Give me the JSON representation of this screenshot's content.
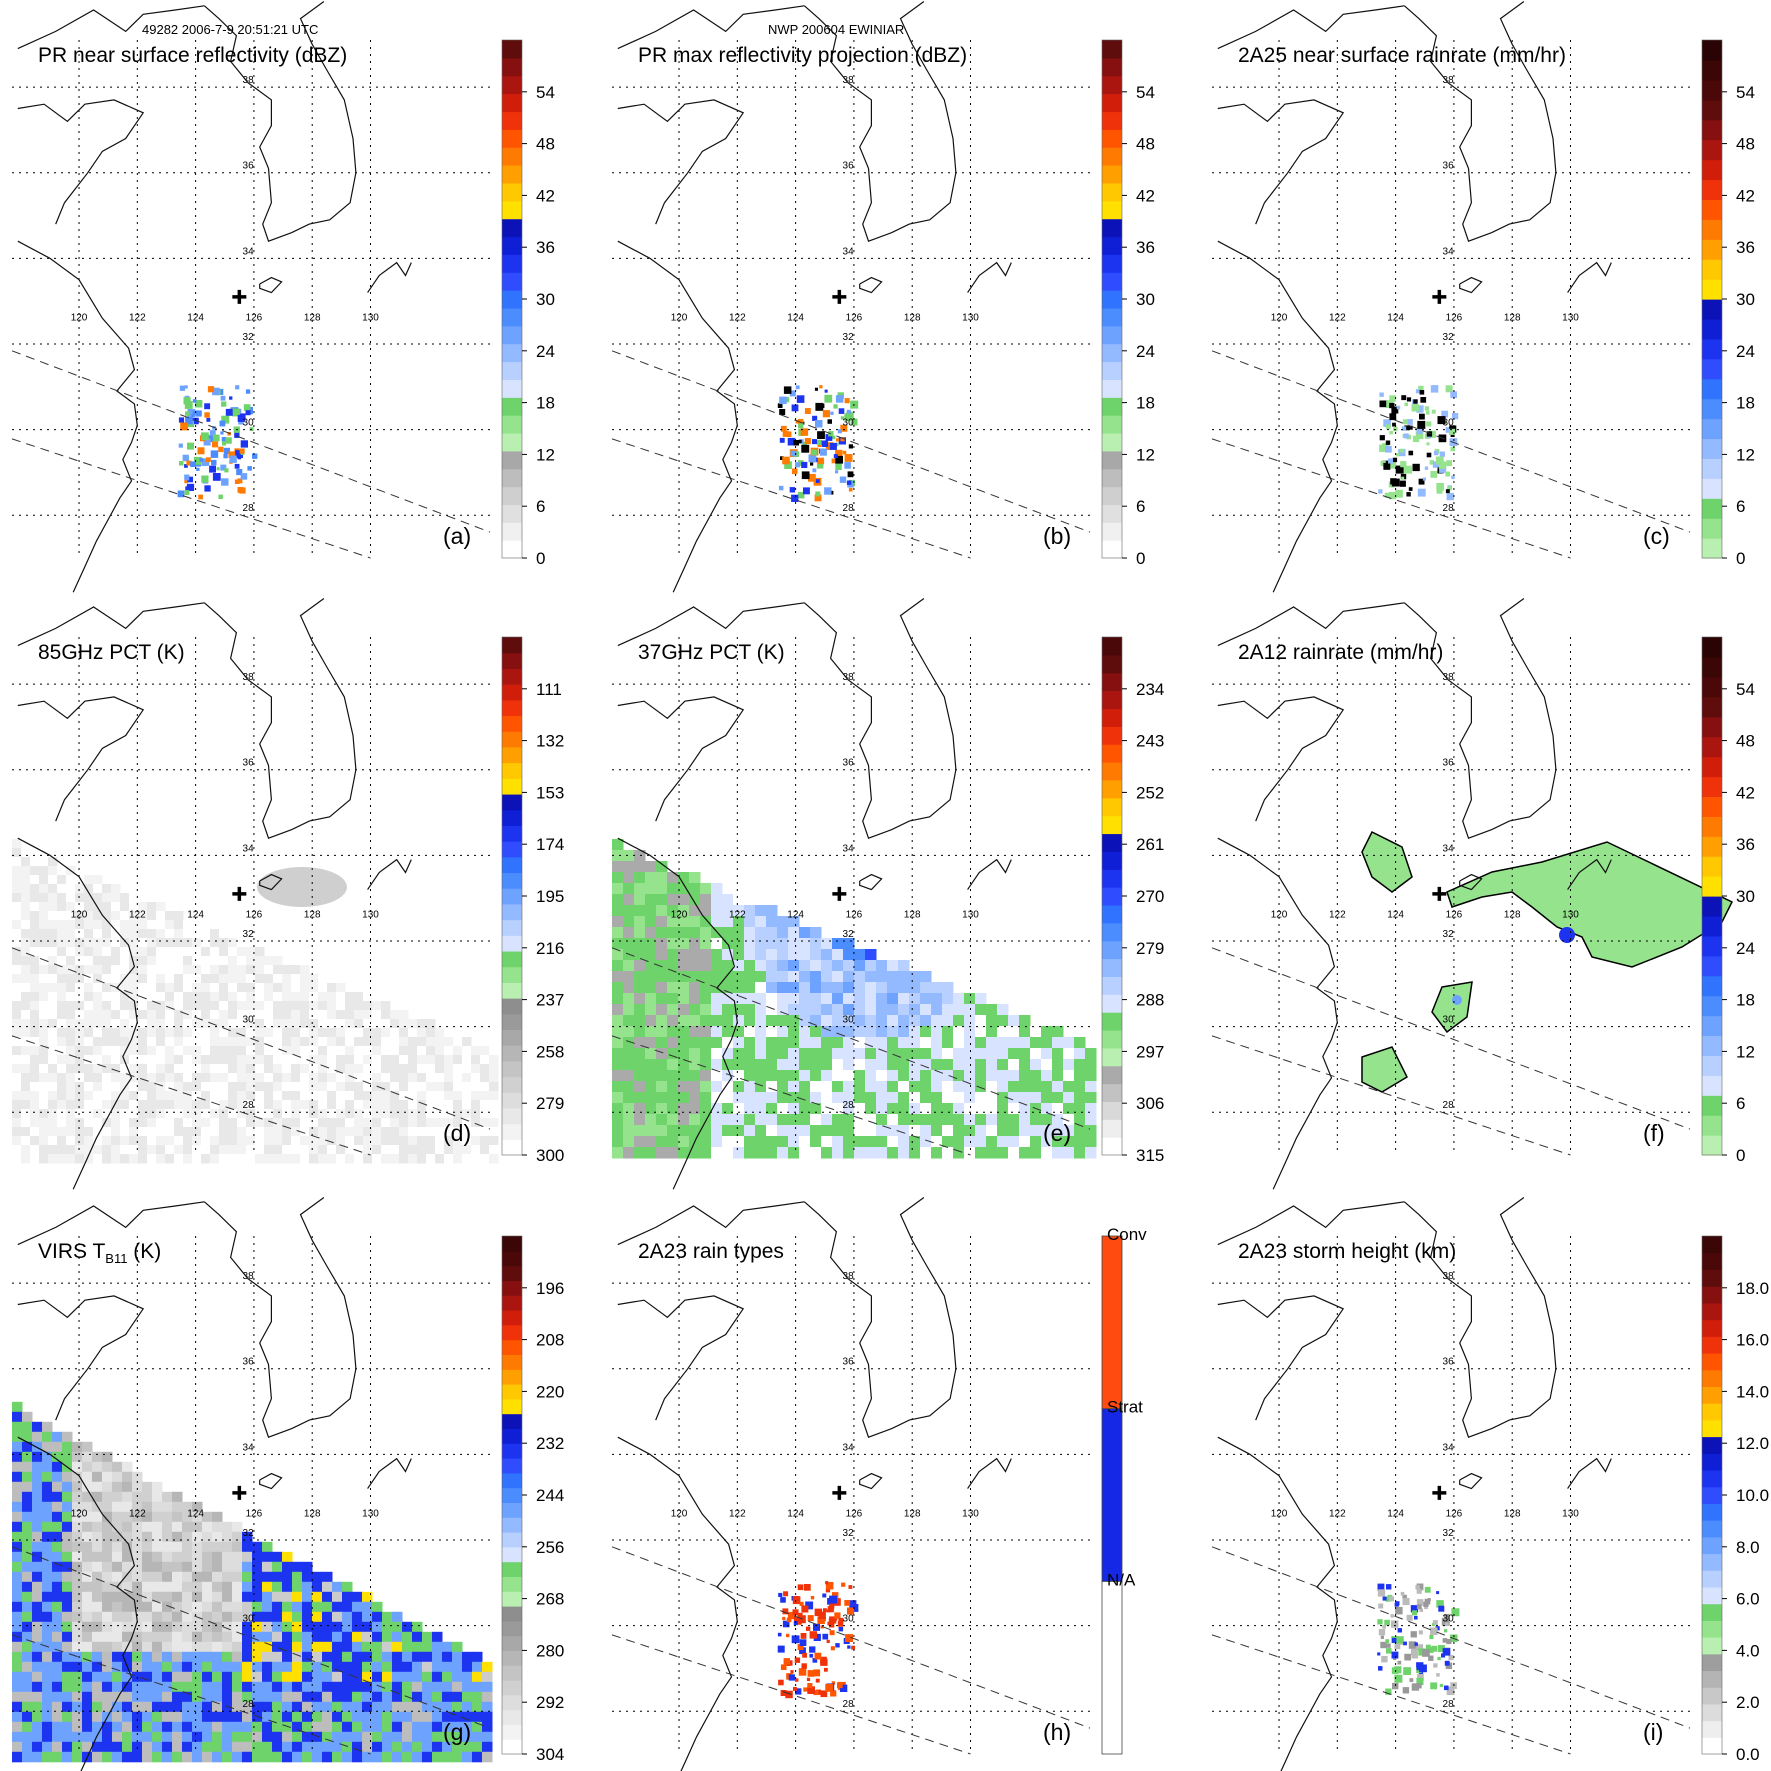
{
  "header": {
    "left": "49282 2006-7-9 20:51:21 UTC",
    "center": "NWP 200604 EWINIAR"
  },
  "map": {
    "lon_labels": [
      "120",
      "122",
      "124",
      "126",
      "128",
      "130"
    ],
    "lat_labels": [
      "38",
      "36",
      "34",
      "32",
      "30",
      "28"
    ]
  },
  "colors": {
    "gray": "#a8a8a8",
    "green": "#7dd87d",
    "light_blue": "#9ec8ff",
    "blue": "#1428e6",
    "yellow": "#ffe400",
    "orange": "#ff8c00",
    "red": "#e61e0a",
    "dark_red": "#8b1a10"
  },
  "chart_data": [
    {
      "id": "a",
      "type": "heatmap",
      "title": "PR near surface reflectivity (dBZ)",
      "panel_label": "(a)",
      "colorbar": {
        "ticks": [
          "0",
          "6",
          "12",
          "18",
          "24",
          "30",
          "36",
          "42",
          "48",
          "54"
        ]
      }
    },
    {
      "id": "b",
      "type": "heatmap",
      "title": "PR max reflectivity projection (dBZ)",
      "panel_label": "(b)",
      "colorbar": {
        "ticks": [
          "0",
          "6",
          "12",
          "18",
          "24",
          "30",
          "36",
          "42",
          "48",
          "54"
        ]
      }
    },
    {
      "id": "c",
      "type": "heatmap",
      "title": "2A25 near surface rainrate (mm/hr)",
      "panel_label": "(c)",
      "colorbar": {
        "ticks": [
          "0",
          "6",
          "12",
          "18",
          "24",
          "30",
          "36",
          "42",
          "48",
          "54"
        ]
      }
    },
    {
      "id": "d",
      "type": "heatmap",
      "title": "85GHz PCT (K)",
      "panel_label": "(d)",
      "colorbar": {
        "ticks": [
          "300",
          "279",
          "258",
          "237",
          "216",
          "195",
          "174",
          "153",
          "132",
          "111"
        ]
      }
    },
    {
      "id": "e",
      "type": "heatmap",
      "title": "37GHz PCT (K)",
      "panel_label": "(e)",
      "colorbar": {
        "ticks": [
          "315",
          "306",
          "297",
          "288",
          "279",
          "270",
          "261",
          "252",
          "243",
          "234"
        ]
      }
    },
    {
      "id": "f",
      "type": "heatmap",
      "title": "2A12 rainrate (mm/hr)",
      "panel_label": "(f)",
      "colorbar": {
        "ticks": [
          "0",
          "6",
          "12",
          "18",
          "24",
          "30",
          "36",
          "42",
          "48",
          "54"
        ]
      }
    },
    {
      "id": "g",
      "type": "heatmap",
      "title": "VIRS T",
      "title_sub": "B11",
      "title_suffix": " (K)",
      "panel_label": "(g)",
      "colorbar": {
        "ticks": [
          "304",
          "292",
          "280",
          "268",
          "256",
          "244",
          "232",
          "220",
          "208",
          "196"
        ]
      }
    },
    {
      "id": "h",
      "type": "heatmap",
      "title": "2A23 rain types",
      "panel_label": "(h)",
      "colorbar": {
        "categories": [
          "N/A",
          "Strat",
          "Conv"
        ]
      }
    },
    {
      "id": "i",
      "type": "heatmap",
      "title": "2A23 storm height (km)",
      "panel_label": "(i)",
      "colorbar": {
        "ticks": [
          "0.0",
          "2.0",
          "4.0",
          "6.0",
          "8.0",
          "10.0",
          "12.0",
          "14.0",
          "16.0",
          "18.0"
        ]
      }
    }
  ]
}
